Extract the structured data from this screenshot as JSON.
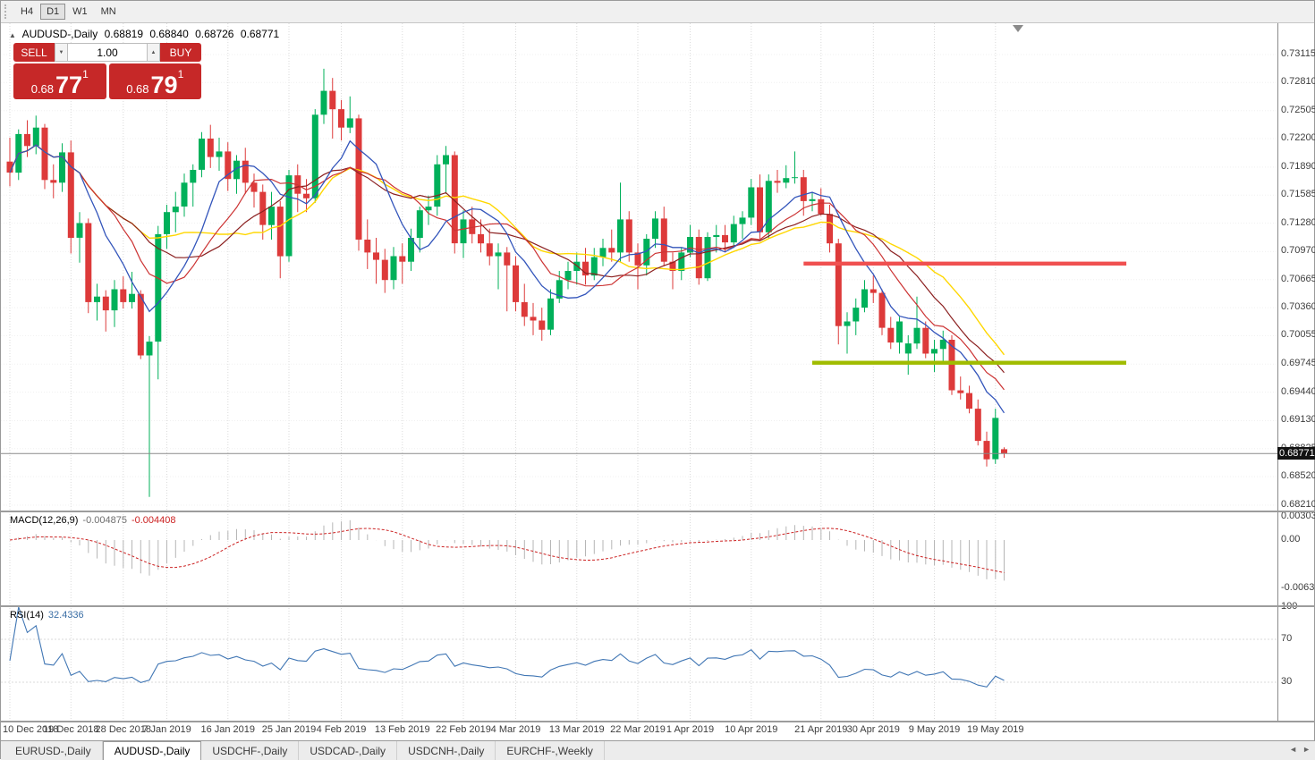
{
  "toolbar": {
    "periods": [
      {
        "label": "H4",
        "active": false
      },
      {
        "label": "D1",
        "active": true
      },
      {
        "label": "W1",
        "active": false
      },
      {
        "label": "MN",
        "active": false
      }
    ]
  },
  "chart_header": {
    "symbol": "AUDUSD-,Daily",
    "open": "0.68819",
    "high": "0.68840",
    "low": "0.68726",
    "close": "0.68771"
  },
  "one_click": {
    "sell_label": "SELL",
    "buy_label": "BUY",
    "volume": "1.00",
    "sell_price_small": "0.68",
    "sell_price_big": "77",
    "sell_price_sup": "1",
    "buy_price_small": "0.68",
    "buy_price_big": "79",
    "buy_price_sup": "1"
  },
  "icons": {
    "symbol_marker": "▲",
    "spin_down": "▼",
    "spin_up": "▲",
    "tab_scroll_left": "◄",
    "tab_scroll_right": "►"
  },
  "price_axis": {
    "ticks": [
      "0.73115",
      "0.72810",
      "0.72505",
      "0.72200",
      "0.71890",
      "0.71585",
      "0.71280",
      "0.70970",
      "0.70665",
      "0.70360",
      "0.70055",
      "0.69745",
      "0.69440",
      "0.69130",
      "0.68825",
      "0.68520",
      "0.68210"
    ],
    "current": "0.68771"
  },
  "macd_panel": {
    "title": "MACD(12,26,9)",
    "value_main": "-0.004875",
    "value_signal": "-0.004408",
    "axis_ticks": [
      {
        "label": "0.003035",
        "value": 0.003035
      },
      {
        "label": "0.00",
        "value": 0
      },
      {
        "label": "-0.006311",
        "value": -0.006311
      }
    ]
  },
  "rsi_panel": {
    "title": "RSI(14)",
    "value": "32.4336",
    "axis_ticks": [
      {
        "label": "100",
        "value": 100
      },
      {
        "label": "70",
        "value": 70
      },
      {
        "label": "30",
        "value": 30
      }
    ],
    "levels": [
      70,
      30
    ]
  },
  "date_axis": [
    {
      "label": "10 Dec 2018",
      "idx": 0
    },
    {
      "label": "19 Dec 2018",
      "idx": 7
    },
    {
      "label": "28 Dec 2018",
      "idx": 13
    },
    {
      "label": "7 Jan 2019",
      "idx": 18
    },
    {
      "label": "16 Jan 2019",
      "idx": 25
    },
    {
      "label": "25 Jan 2019",
      "idx": 32
    },
    {
      "label": "4 Feb 2019",
      "idx": 38
    },
    {
      "label": "13 Feb 2019",
      "idx": 45
    },
    {
      "label": "22 Feb 2019",
      "idx": 52
    },
    {
      "label": "4 Mar 2019",
      "idx": 58
    },
    {
      "label": "13 Mar 2019",
      "idx": 65
    },
    {
      "label": "22 Mar 2019",
      "idx": 72
    },
    {
      "label": "1 Apr 2019",
      "idx": 78
    },
    {
      "label": "10 Apr 2019",
      "idx": 85
    },
    {
      "label": "21 Apr 2019",
      "idx": 93
    },
    {
      "label": "30 Apr 2019",
      "idx": 99
    },
    {
      "label": "9 May 2019",
      "idx": 106
    },
    {
      "label": "19 May 2019",
      "idx": 113
    }
  ],
  "tabs": {
    "items": [
      {
        "label": "EURUSD-,Daily",
        "active": false
      },
      {
        "label": "AUDUSD-,Daily",
        "active": true
      },
      {
        "label": "USDCHF-,Daily",
        "active": false
      },
      {
        "label": "USDCAD-,Daily",
        "active": false
      },
      {
        "label": "USDCNH-,Daily",
        "active": false
      },
      {
        "label": "EURCHF-,Weekly",
        "active": false
      }
    ]
  },
  "colors": {
    "bull": "#00B05A",
    "bear": "#DD3A3A",
    "ma_fast": "#3355BB",
    "ma_mid": "#CC3333",
    "ma_mid2": "#8B2020",
    "ma_slow": "#FFD700",
    "macd_hist": "#B6B6B6",
    "macd_signal": "#CC2222",
    "rsi_line": "#4076B4",
    "hline_red": "#F05050",
    "hline_green": "#A0BC00",
    "trade_red": "#C62828"
  },
  "chart_data": {
    "type": "candlestick",
    "symbol": "AUDUSD",
    "timeframe": "Daily",
    "ylim": [
      0.6821,
      0.73115
    ],
    "moving_averages": [
      {
        "period": 21,
        "color_key": "ma_slow",
        "width": 1.4
      },
      {
        "period": 16,
        "color_key": "ma_mid2",
        "width": 1.2
      },
      {
        "period": 12,
        "color_key": "ma_mid",
        "width": 1.2
      },
      {
        "period": 8,
        "color_key": "ma_fast",
        "width": 1.3
      }
    ],
    "hlines": [
      {
        "price": 0.7084,
        "from_idx": 91,
        "to_idx": 128,
        "color_key": "hline_red"
      },
      {
        "price": 0.6976,
        "from_idx": 92,
        "to_idx": 128,
        "color_key": "hline_green"
      }
    ],
    "indicators": {
      "macd": {
        "fast": 12,
        "slow": 26,
        "signal": 9
      },
      "rsi": {
        "period": 14
      }
    },
    "candles": [
      [
        "2018-12-10",
        0.7195,
        0.7221,
        0.7168,
        0.7183
      ],
      [
        "2018-12-11",
        0.7183,
        0.723,
        0.7175,
        0.7225
      ],
      [
        "2018-12-12",
        0.7225,
        0.724,
        0.72,
        0.7212
      ],
      [
        "2018-12-13",
        0.7212,
        0.7245,
        0.7203,
        0.7232
      ],
      [
        "2018-12-14",
        0.7232,
        0.7236,
        0.7165,
        0.7175
      ],
      [
        "2018-12-17",
        0.7175,
        0.7192,
        0.7155,
        0.7172
      ],
      [
        "2018-12-18",
        0.7172,
        0.7215,
        0.7162,
        0.7205
      ],
      [
        "2018-12-19",
        0.7205,
        0.7218,
        0.7095,
        0.7112
      ],
      [
        "2018-12-20",
        0.7112,
        0.714,
        0.7085,
        0.7128
      ],
      [
        "2018-12-21",
        0.7128,
        0.7133,
        0.703,
        0.7042
      ],
      [
        "2018-12-24",
        0.7042,
        0.7062,
        0.7022,
        0.7048
      ],
      [
        "2018-12-26",
        0.7048,
        0.7055,
        0.701,
        0.7033
      ],
      [
        "2018-12-27",
        0.7033,
        0.7066,
        0.7015,
        0.7056
      ],
      [
        "2018-12-28",
        0.7056,
        0.707,
        0.7035,
        0.7042
      ],
      [
        "2018-12-31",
        0.7042,
        0.7075,
        0.7035,
        0.7051
      ],
      [
        "2019-01-02",
        0.7051,
        0.7055,
        0.698,
        0.6984
      ],
      [
        "2019-01-03",
        0.6984,
        0.7005,
        0.683,
        0.6999
      ],
      [
        "2019-01-04",
        0.6999,
        0.7125,
        0.6958,
        0.7116
      ],
      [
        "2019-01-07",
        0.7116,
        0.7148,
        0.71,
        0.714
      ],
      [
        "2019-01-08",
        0.714,
        0.7162,
        0.7118,
        0.7146
      ],
      [
        "2019-01-09",
        0.7146,
        0.7182,
        0.7135,
        0.7172
      ],
      [
        "2019-01-10",
        0.7172,
        0.7192,
        0.7146,
        0.7186
      ],
      [
        "2019-01-11",
        0.7186,
        0.7227,
        0.7178,
        0.722
      ],
      [
        "2019-01-14",
        0.722,
        0.7235,
        0.7188,
        0.72
      ],
      [
        "2019-01-15",
        0.72,
        0.7221,
        0.7185,
        0.7206
      ],
      [
        "2019-01-16",
        0.7206,
        0.7216,
        0.7163,
        0.7176
      ],
      [
        "2019-01-17",
        0.7176,
        0.7202,
        0.716,
        0.7196
      ],
      [
        "2019-01-18",
        0.7196,
        0.721,
        0.716,
        0.7172
      ],
      [
        "2019-01-21",
        0.7172,
        0.7182,
        0.7145,
        0.7162
      ],
      [
        "2019-01-22",
        0.7162,
        0.717,
        0.711,
        0.7126
      ],
      [
        "2019-01-23",
        0.7126,
        0.7162,
        0.711,
        0.7146
      ],
      [
        "2019-01-24",
        0.7146,
        0.7152,
        0.7068,
        0.7092
      ],
      [
        "2019-01-25",
        0.7092,
        0.7186,
        0.7086,
        0.718
      ],
      [
        "2019-01-28",
        0.718,
        0.7192,
        0.714,
        0.716
      ],
      [
        "2019-01-29",
        0.716,
        0.7176,
        0.714,
        0.7155
      ],
      [
        "2019-01-30",
        0.7155,
        0.7252,
        0.715,
        0.7246
      ],
      [
        "2019-01-31",
        0.7246,
        0.7296,
        0.7236,
        0.7272
      ],
      [
        "2019-02-01",
        0.7272,
        0.7286,
        0.722,
        0.7252
      ],
      [
        "2019-02-04",
        0.7252,
        0.7262,
        0.7218,
        0.7232
      ],
      [
        "2019-02-05",
        0.7232,
        0.7266,
        0.7226,
        0.7242
      ],
      [
        "2019-02-06",
        0.7242,
        0.7246,
        0.7098,
        0.711
      ],
      [
        "2019-02-07",
        0.711,
        0.7132,
        0.7078,
        0.7096
      ],
      [
        "2019-02-08",
        0.7096,
        0.7112,
        0.7062,
        0.7088
      ],
      [
        "2019-02-11",
        0.7088,
        0.71,
        0.7052,
        0.7066
      ],
      [
        "2019-02-12",
        0.7066,
        0.7102,
        0.7056,
        0.7092
      ],
      [
        "2019-02-13",
        0.7092,
        0.7106,
        0.7062,
        0.7086
      ],
      [
        "2019-02-14",
        0.7086,
        0.7122,
        0.7076,
        0.7112
      ],
      [
        "2019-02-15",
        0.7112,
        0.7146,
        0.7096,
        0.7142
      ],
      [
        "2019-02-18",
        0.7142,
        0.7158,
        0.7126,
        0.7146
      ],
      [
        "2019-02-19",
        0.7146,
        0.7202,
        0.7136,
        0.7192
      ],
      [
        "2019-02-20",
        0.7192,
        0.7212,
        0.716,
        0.7202
      ],
      [
        "2019-02-21",
        0.7202,
        0.7206,
        0.7095,
        0.7106
      ],
      [
        "2019-02-22",
        0.7106,
        0.7142,
        0.709,
        0.7132
      ],
      [
        "2019-02-25",
        0.7132,
        0.7146,
        0.7106,
        0.7116
      ],
      [
        "2019-02-26",
        0.7116,
        0.7132,
        0.7096,
        0.7106
      ],
      [
        "2019-02-27",
        0.7106,
        0.7122,
        0.7082,
        0.7092
      ],
      [
        "2019-02-28",
        0.7092,
        0.7106,
        0.7056,
        0.7096
      ],
      [
        "2019-03-01",
        0.7096,
        0.7102,
        0.7032,
        0.7082
      ],
      [
        "2019-03-04",
        0.7082,
        0.7092,
        0.7032,
        0.7042
      ],
      [
        "2019-03-05",
        0.7042,
        0.7062,
        0.7016,
        0.7026
      ],
      [
        "2019-03-06",
        0.7026,
        0.7041,
        0.7006,
        0.7022
      ],
      [
        "2019-03-07",
        0.7022,
        0.7036,
        0.7,
        0.7012
      ],
      [
        "2019-03-08",
        0.7012,
        0.7056,
        0.7006,
        0.7046
      ],
      [
        "2019-03-11",
        0.7046,
        0.7076,
        0.7041,
        0.7066
      ],
      [
        "2019-03-12",
        0.7066,
        0.7086,
        0.7056,
        0.7076
      ],
      [
        "2019-03-13",
        0.7076,
        0.7096,
        0.7061,
        0.7086
      ],
      [
        "2019-03-14",
        0.7086,
        0.7101,
        0.7061,
        0.7071
      ],
      [
        "2019-03-15",
        0.7071,
        0.7101,
        0.7066,
        0.7091
      ],
      [
        "2019-03-18",
        0.7091,
        0.7111,
        0.7081,
        0.7101
      ],
      [
        "2019-03-19",
        0.7101,
        0.7121,
        0.7086,
        0.7096
      ],
      [
        "2019-03-20",
        0.7096,
        0.7172,
        0.7086,
        0.7132
      ],
      [
        "2019-03-21",
        0.7132,
        0.7141,
        0.7086,
        0.7096
      ],
      [
        "2019-03-22",
        0.7096,
        0.7106,
        0.7056,
        0.7082
      ],
      [
        "2019-03-25",
        0.7082,
        0.7116,
        0.7071,
        0.7111
      ],
      [
        "2019-03-26",
        0.7111,
        0.7141,
        0.7101,
        0.7133
      ],
      [
        "2019-03-27",
        0.7133,
        0.7146,
        0.7081,
        0.7086
      ],
      [
        "2019-03-28",
        0.7086,
        0.7096,
        0.7056,
        0.7076
      ],
      [
        "2019-03-29",
        0.7076,
        0.7101,
        0.7066,
        0.7096
      ],
      [
        "2019-04-01",
        0.7096,
        0.7126,
        0.7091,
        0.7113
      ],
      [
        "2019-04-02",
        0.7113,
        0.7121,
        0.7061,
        0.7068
      ],
      [
        "2019-04-03",
        0.7068,
        0.7118,
        0.7065,
        0.7113
      ],
      [
        "2019-04-04",
        0.7113,
        0.7126,
        0.7096,
        0.7115
      ],
      [
        "2019-04-05",
        0.7115,
        0.7126,
        0.7096,
        0.7107
      ],
      [
        "2019-04-08",
        0.7107,
        0.7136,
        0.7101,
        0.7127
      ],
      [
        "2019-04-09",
        0.7127,
        0.7141,
        0.7111,
        0.7134
      ],
      [
        "2019-04-10",
        0.7134,
        0.7176,
        0.7126,
        0.7167
      ],
      [
        "2019-04-11",
        0.7167,
        0.7181,
        0.7111,
        0.7118
      ],
      [
        "2019-04-12",
        0.7118,
        0.7181,
        0.7111,
        0.7174
      ],
      [
        "2019-04-15",
        0.7174,
        0.7186,
        0.7161,
        0.7172
      ],
      [
        "2019-04-16",
        0.7172,
        0.7191,
        0.7166,
        0.7177
      ],
      [
        "2019-04-17",
        0.7177,
        0.7206,
        0.7171,
        0.7178
      ],
      [
        "2019-04-18",
        0.7178,
        0.7186,
        0.7136,
        0.7152
      ],
      [
        "2019-04-19",
        0.7152,
        0.7161,
        0.7141,
        0.7154
      ],
      [
        "2019-04-22",
        0.7154,
        0.7166,
        0.7136,
        0.7138
      ],
      [
        "2019-04-23",
        0.7138,
        0.7148,
        0.7096,
        0.7106
      ],
      [
        "2019-04-24",
        0.7106,
        0.7111,
        0.6996,
        0.7016
      ],
      [
        "2019-04-25",
        0.7016,
        0.7031,
        0.6986,
        0.7021
      ],
      [
        "2019-04-26",
        0.7021,
        0.7046,
        0.7006,
        0.7036
      ],
      [
        "2019-04-29",
        0.7036,
        0.7066,
        0.7031,
        0.7056
      ],
      [
        "2019-04-30",
        0.7056,
        0.7071,
        0.7041,
        0.7052
      ],
      [
        "2019-05-01",
        0.7052,
        0.7056,
        0.7006,
        0.7014
      ],
      [
        "2019-05-02",
        0.7014,
        0.7026,
        0.6991,
        0.6998
      ],
      [
        "2019-05-03",
        0.6998,
        0.7026,
        0.6986,
        0.7021
      ],
      [
        "2019-05-06",
        0.6986,
        0.7006,
        0.6963,
        0.6997
      ],
      [
        "2019-05-07",
        0.6997,
        0.7048,
        0.6991,
        0.7014
      ],
      [
        "2019-05-08",
        0.7014,
        0.7021,
        0.6981,
        0.6986
      ],
      [
        "2019-05-09",
        0.6986,
        0.7001,
        0.6966,
        0.6991
      ],
      [
        "2019-05-10",
        0.6991,
        0.7011,
        0.6976,
        0.7001
      ],
      [
        "2019-05-13",
        0.7001,
        0.7006,
        0.6941,
        0.6946
      ],
      [
        "2019-05-14",
        0.6946,
        0.6961,
        0.6936,
        0.6943
      ],
      [
        "2019-05-15",
        0.6943,
        0.6951,
        0.6921,
        0.6926
      ],
      [
        "2019-05-16",
        0.6926,
        0.6936,
        0.6886,
        0.6891
      ],
      [
        "2019-05-17",
        0.6891,
        0.6901,
        0.6863,
        0.6871
      ],
      [
        "2019-05-20",
        0.6871,
        0.6926,
        0.6866,
        0.6916
      ],
      [
        "2019-05-21",
        0.68819,
        0.6884,
        0.68726,
        0.68771
      ]
    ]
  }
}
